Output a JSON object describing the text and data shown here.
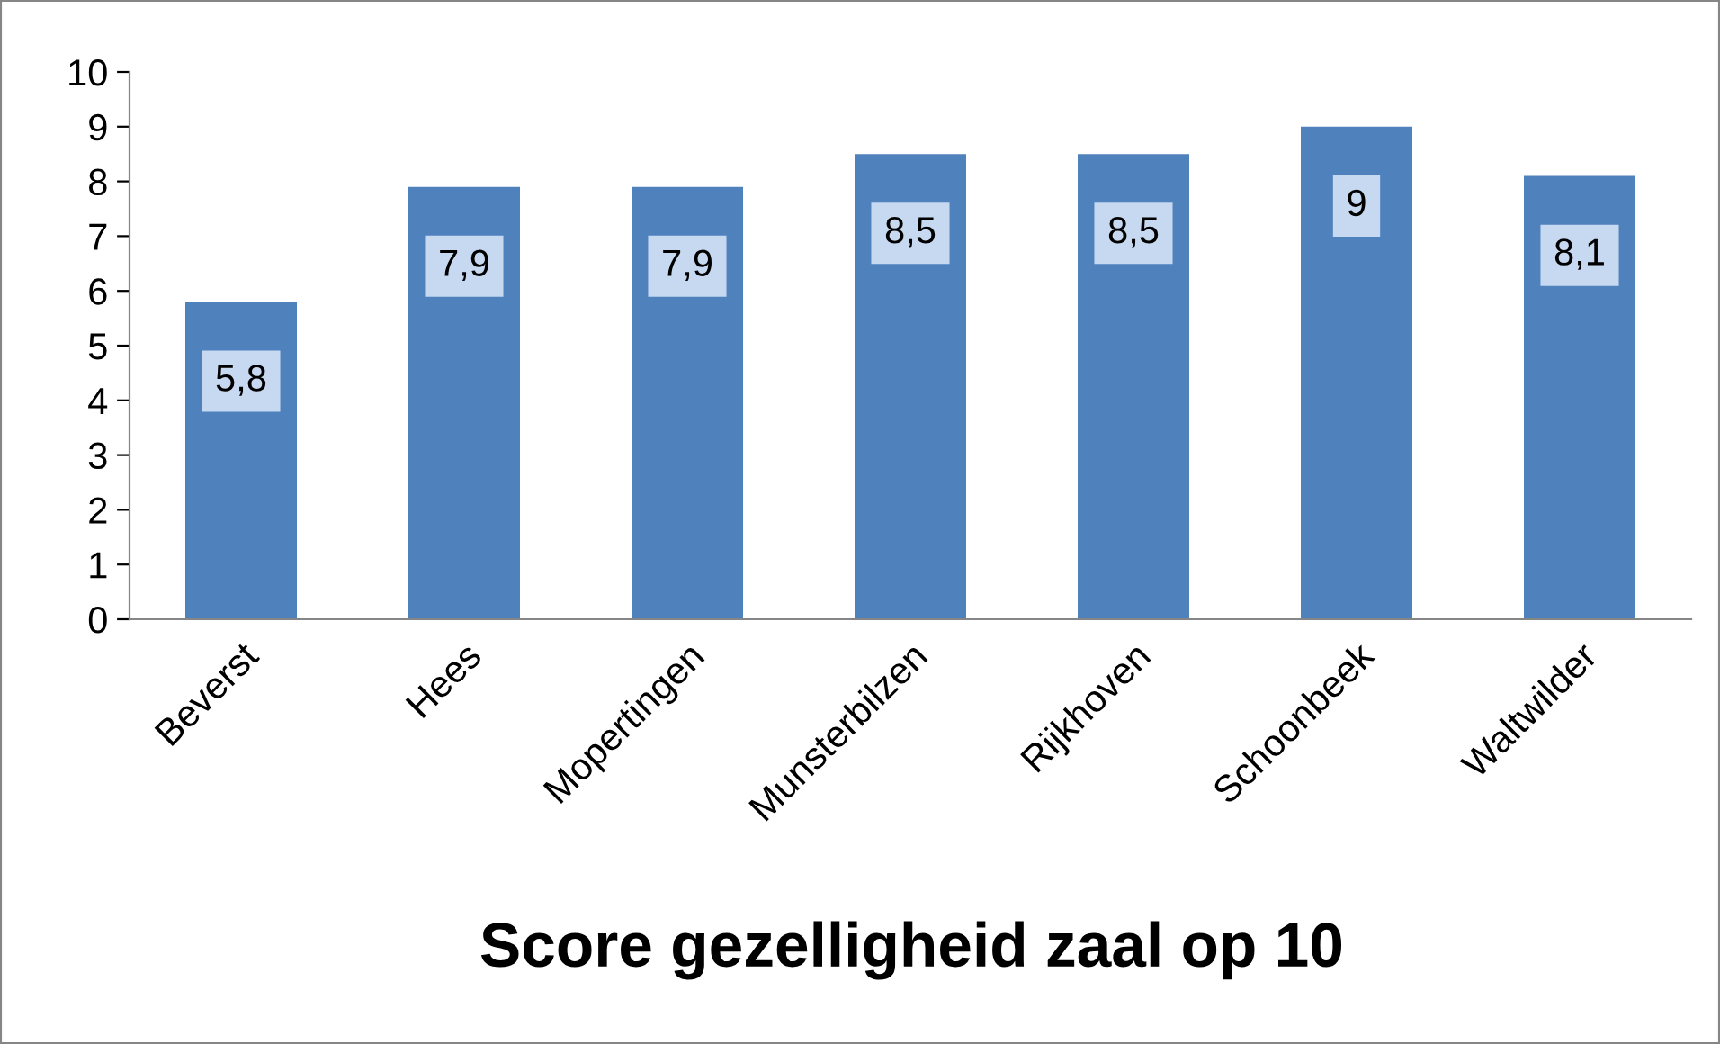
{
  "chart_data": {
    "type": "bar",
    "title": "Score gezelligheid zaal op 10",
    "categories": [
      "Beverst",
      "Hees",
      "Mopertingen",
      "Munsterbilzen",
      "Rijkhoven",
      "Schoonbeek",
      "Waltwilder"
    ],
    "values": [
      5.8,
      7.9,
      7.9,
      8.5,
      8.5,
      9,
      8.1
    ],
    "value_labels": [
      "5,8",
      "7,9",
      "7,9",
      "8,5",
      "8,5",
      "9",
      "8,1"
    ],
    "color": "#4f81bd",
    "ylim": [
      0,
      10
    ],
    "yticks": [
      0,
      1,
      2,
      3,
      4,
      5,
      6,
      7,
      8,
      9,
      10
    ],
    "grid": false,
    "legend": false
  }
}
